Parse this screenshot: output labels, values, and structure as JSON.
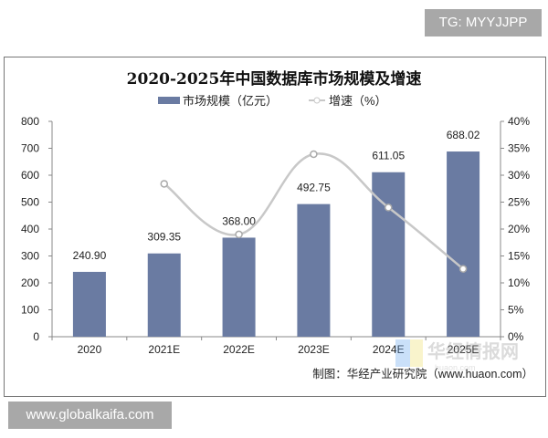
{
  "watermarks": {
    "top_right": "TG: MYYJJPP",
    "bottom_left": "www.globalkaifa.com",
    "logo": "华经情报网",
    "logo_sub": "huaon.com"
  },
  "colors": {
    "bar": "#6A7BA2",
    "line": "#C8C8C8",
    "frame": "#777777"
  },
  "chart_data": {
    "type": "bar+line",
    "title": "2020-2025年中国数据库市场规模及增速",
    "categories": [
      "2020",
      "2021E",
      "2022E",
      "2023E",
      "2024E",
      "2025E"
    ],
    "series": [
      {
        "name": "市场规模（亿元）",
        "type": "bar",
        "axis": "left",
        "values": [
          240.9,
          309.35,
          368.0,
          492.75,
          611.05,
          688.02
        ],
        "labels": [
          "240.90",
          "309.35",
          "368.00",
          "492.75",
          "611.05",
          "688.02"
        ]
      },
      {
        "name": "增速（%）",
        "type": "line",
        "smooth": true,
        "axis": "right",
        "values": [
          null,
          28.4,
          19.0,
          33.9,
          24.0,
          12.6
        ]
      }
    ],
    "ylim_left": [
      0,
      800
    ],
    "yticks_left": [
      "0",
      "100",
      "200",
      "300",
      "400",
      "500",
      "600",
      "700",
      "800"
    ],
    "ylim_right": [
      0,
      40
    ],
    "yticks_right": [
      "0%",
      "5%",
      "10%",
      "15%",
      "20%",
      "25%",
      "30%",
      "35%",
      "40%"
    ],
    "grid": false,
    "legend": "top",
    "source": "制图：华经产业研究院（www.huaon.com）"
  }
}
